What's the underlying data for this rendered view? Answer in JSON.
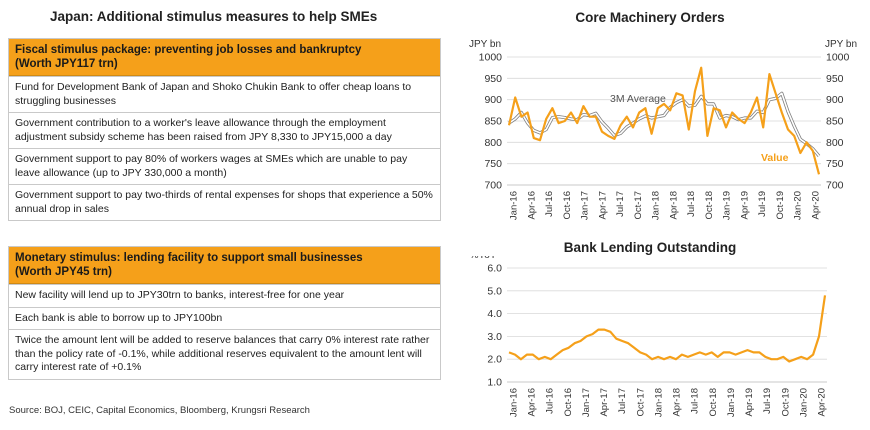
{
  "left_title": "Japan: Additional stimulus measures to help SMEs",
  "fiscal": {
    "heading": "Fiscal stimulus package: preventing job losses and bankruptcy",
    "subheading": "(Worth JPY117 trn)",
    "items": [
      "Fund for Development Bank of Japan and Shoko Chukin Bank to offer cheap loans to struggling businesses",
      "Government contribution to a worker's leave allowance through the employment adjustment subsidy scheme has been raised from JPY 8,330 to JPY15,000 a day",
      "Government support to pay 80% of workers wages at SMEs which are unable to pay leave allowance (up to JPY 330,000 a month)",
      "Government support to pay two-thirds of rental expenses for shops that experience a 50% annual drop in sales"
    ]
  },
  "monetary": {
    "heading": "Monetary stimulus: lending facility to support small businesses",
    "subheading": "(Worth JPY45 trn)",
    "items": [
      "New facility will lend up to JPY30trn to banks, interest-free for one year",
      "Each bank is able to borrow up to JPY100bn",
      "Twice the amount lent will be added to reserve balances that carry 0% interest rate rather than the policy rate of -0.1%, while additional reserves equivalent to the amount lent will carry interest rate of +0.1%"
    ]
  },
  "source": "Source: BOJ, CEIC, Capital Economics, Bloomberg, Krungsri Research",
  "colors": {
    "orange": "#f5a01a",
    "grey": "#a6a6a6",
    "grid": "#d9d9d9"
  },
  "chart_data": [
    {
      "type": "line",
      "title": "Core Machinery Orders",
      "ylabel": "JPY bn",
      "ylabel_right": "JPY bn",
      "ylim": [
        700,
        1000
      ],
      "yticks": [
        700,
        750,
        800,
        850,
        900,
        950,
        1000
      ],
      "grid": true,
      "tick_labels": [
        "Jan-16",
        "Apr-16",
        "Jul-16",
        "Oct-16",
        "Jan-17",
        "Apr-17",
        "Jul-17",
        "Oct-17",
        "Jan-18",
        "Apr-18",
        "Jul-18",
        "Oct-18",
        "Jan-19",
        "Apr-19",
        "Jul-19",
        "Oct-19",
        "Jan-20",
        "Apr-20"
      ],
      "annotations": [
        "3M Average",
        "Value"
      ],
      "series": [
        {
          "name": "Value",
          "color": "#f5a01a",
          "values": [
            840,
            905,
            860,
            870,
            810,
            805,
            855,
            880,
            845,
            850,
            870,
            845,
            885,
            860,
            860,
            825,
            815,
            808,
            840,
            860,
            835,
            870,
            880,
            820,
            880,
            890,
            875,
            915,
            910,
            830,
            920,
            975,
            815,
            880,
            875,
            835,
            870,
            855,
            845,
            870,
            905,
            835,
            960,
            915,
            870,
            830,
            815,
            775,
            800,
            780,
            725
          ]
        },
        {
          "name": "3M Average",
          "color": "#a6a6a6",
          "values": [
            845,
            855,
            870,
            845,
            828,
            822,
            830,
            858,
            860,
            858,
            855,
            853,
            865,
            863,
            868,
            848,
            833,
            816,
            821,
            836,
            845,
            855,
            862,
            857,
            860,
            863,
            882,
            893,
            900,
            885,
            887,
            908,
            890,
            890,
            857,
            863,
            860,
            853,
            857,
            857,
            873,
            870,
            900,
            903,
            915,
            872,
            838,
            807,
            797,
            785,
            768
          ]
        }
      ]
    },
    {
      "type": "line",
      "title": "Bank Lending Outstanding",
      "ylabel": "%YoY",
      "ylim": [
        1.0,
        6.0
      ],
      "yticks": [
        1.0,
        2.0,
        3.0,
        4.0,
        5.0,
        6.0
      ],
      "grid": true,
      "tick_labels": [
        "Jan-16",
        "Apr-16",
        "Jul-16",
        "Oct-16",
        "Jan-17",
        "Apr-17",
        "Jul-17",
        "Oct-17",
        "Jan-18",
        "Apr-18",
        "Jul-18",
        "Oct-18",
        "Jan-19",
        "Apr-19",
        "Jul-19",
        "Oct-19",
        "Jan-20",
        "Apr-20"
      ],
      "series": [
        {
          "name": "Bank Lending",
          "color": "#f5a01a",
          "values": [
            2.3,
            2.2,
            2.0,
            2.2,
            2.2,
            2.0,
            2.1,
            2.0,
            2.2,
            2.4,
            2.5,
            2.7,
            2.8,
            3.0,
            3.1,
            3.3,
            3.3,
            3.2,
            2.9,
            2.8,
            2.7,
            2.5,
            2.3,
            2.2,
            2.0,
            2.1,
            2.0,
            2.1,
            2.0,
            2.2,
            2.1,
            2.2,
            2.3,
            2.2,
            2.3,
            2.1,
            2.3,
            2.3,
            2.2,
            2.3,
            2.4,
            2.3,
            2.3,
            2.1,
            2.0,
            2.0,
            2.1,
            1.9,
            2.0,
            2.1,
            2.0,
            2.2,
            3.0,
            4.8
          ]
        }
      ]
    }
  ]
}
